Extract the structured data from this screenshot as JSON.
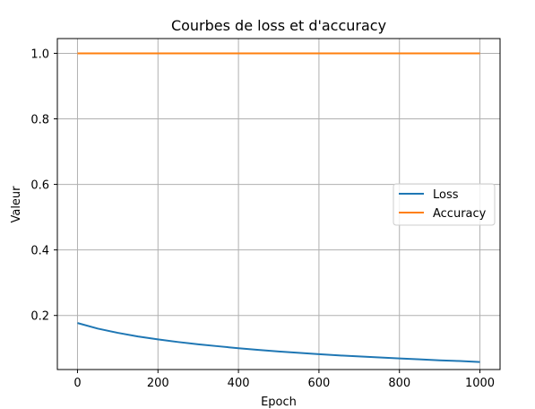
{
  "chart_data": {
    "type": "line",
    "title": "Courbes de loss et d'accuracy",
    "xlabel": "Epoch",
    "ylabel": "Valeur",
    "xlim": [
      -50,
      1050
    ],
    "ylim": [
      0.035,
      1.045
    ],
    "xticks": [
      0,
      200,
      400,
      600,
      800,
      1000
    ],
    "yticks": [
      0.2,
      0.4,
      0.6,
      0.8,
      1.0
    ],
    "xtick_labels": [
      "0",
      "200",
      "400",
      "600",
      "800",
      "1000"
    ],
    "ytick_labels": [
      "0.2",
      "0.4",
      "0.6",
      "0.8",
      "1.0"
    ],
    "grid": true,
    "legend_position": "center-right",
    "series": [
      {
        "name": "Loss",
        "color": "#1f77b4",
        "x": [
          0,
          50,
          100,
          150,
          200,
          250,
          300,
          350,
          400,
          450,
          500,
          550,
          600,
          650,
          700,
          750,
          800,
          850,
          900,
          950,
          1000
        ],
        "y": [
          0.177,
          0.16,
          0.147,
          0.136,
          0.127,
          0.119,
          0.112,
          0.106,
          0.1,
          0.095,
          0.09,
          0.086,
          0.082,
          0.078,
          0.075,
          0.072,
          0.069,
          0.066,
          0.063,
          0.061,
          0.058
        ]
      },
      {
        "name": "Accuracy",
        "color": "#ff7f0e",
        "x": [
          0,
          1000
        ],
        "y": [
          1.0,
          1.0
        ]
      }
    ]
  }
}
